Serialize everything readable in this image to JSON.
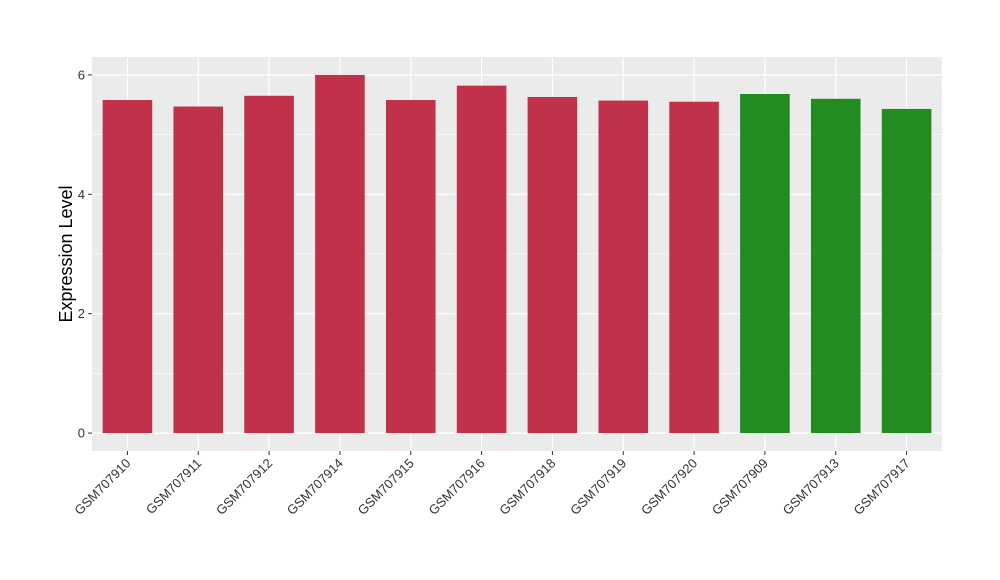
{
  "chart_data": {
    "type": "bar",
    "title": "",
    "xlabel": "",
    "ylabel": "Expression Level",
    "ylim": [
      -0.3,
      6.3
    ],
    "yticks": [
      0,
      2,
      4,
      6
    ],
    "grid": true,
    "categories": [
      "GSM707910",
      "GSM707911",
      "GSM707912",
      "GSM707914",
      "GSM707915",
      "GSM707916",
      "GSM707918",
      "GSM707919",
      "GSM707920",
      "GSM707909",
      "GSM707913",
      "GSM707917"
    ],
    "values": [
      5.58,
      5.47,
      5.65,
      6.0,
      5.58,
      5.82,
      5.63,
      5.57,
      5.55,
      5.68,
      5.6,
      5.43
    ],
    "groups": [
      "a",
      "a",
      "a",
      "a",
      "a",
      "a",
      "a",
      "a",
      "a",
      "b",
      "b",
      "b"
    ],
    "colors": {
      "a": "#C0314A",
      "b": "#228B22"
    },
    "panel_background": "#EBEBEB",
    "grid_color": "#FFFFFF"
  }
}
